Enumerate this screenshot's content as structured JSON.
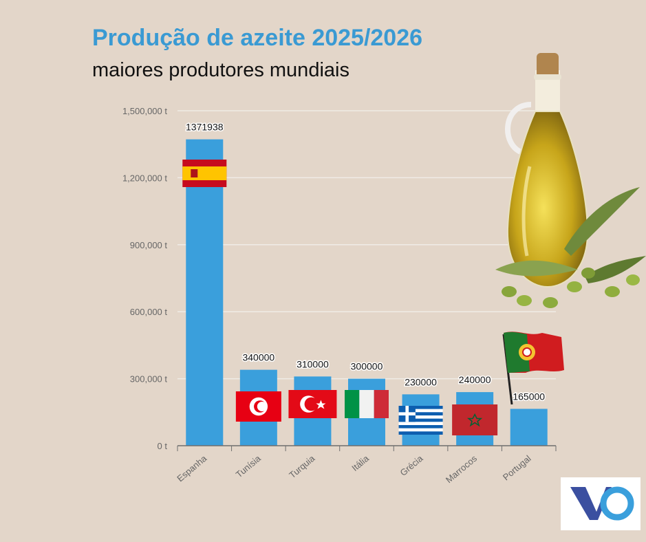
{
  "header": {
    "title": "Produção de azeite 2025/2026",
    "subtitle": "maiores produtores mundiais"
  },
  "chart_data": {
    "type": "bar",
    "title": "Produção de azeite 2025/2026",
    "subtitle": "maiores produtores mundiais",
    "categories": [
      "Espanha",
      "Tunísia",
      "Turquia",
      "Itália",
      "Grécia",
      "Marrocos",
      "Portugal"
    ],
    "values": [
      1371938,
      340000,
      310000,
      300000,
      230000,
      240000,
      165000
    ],
    "value_labels": [
      "1371938",
      "340000",
      "310000",
      "300000",
      "230000",
      "240000",
      "165000"
    ],
    "ylim": [
      0,
      1500000
    ],
    "yticks": [
      0,
      300000,
      600000,
      900000,
      1200000,
      1500000
    ],
    "ytick_labels": [
      "0 t",
      "300,000 t",
      "600,000 t",
      "900,000 t",
      "1,200,000 t",
      "1,500,000 t"
    ],
    "grid": true,
    "bar_color": "#3a9fdc",
    "flags": [
      "spain-flag",
      "tunisia-flag",
      "turkey-flag",
      "italy-flag",
      "greece-flag",
      "morocco-flag",
      "portugal-flag"
    ]
  },
  "decorations": {
    "bottle": "olive-oil-bottle-icon",
    "logo": "vo-logo"
  }
}
